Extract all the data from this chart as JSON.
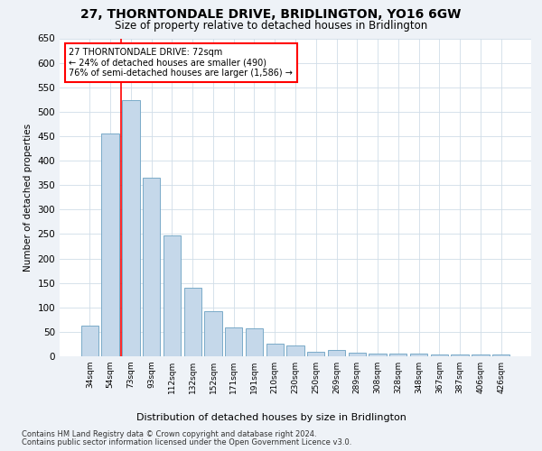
{
  "title": "27, THORNTONDALE DRIVE, BRIDLINGTON, YO16 6GW",
  "subtitle": "Size of property relative to detached houses in Bridlington",
  "xlabel": "Distribution of detached houses by size in Bridlington",
  "ylabel": "Number of detached properties",
  "bar_labels": [
    "34sqm",
    "54sqm",
    "73sqm",
    "93sqm",
    "112sqm",
    "132sqm",
    "152sqm",
    "171sqm",
    "191sqm",
    "210sqm",
    "230sqm",
    "250sqm",
    "269sqm",
    "289sqm",
    "308sqm",
    "328sqm",
    "348sqm",
    "367sqm",
    "387sqm",
    "406sqm",
    "426sqm"
  ],
  "bar_values": [
    62,
    455,
    523,
    365,
    247,
    140,
    93,
    59,
    57,
    25,
    23,
    10,
    12,
    7,
    6,
    5,
    5,
    4,
    4,
    4,
    4
  ],
  "bar_color": "#c5d8ea",
  "bar_edge_color": "#7aaac8",
  "property_line_x": 1.5,
  "annotation_title": "27 THORNTONDALE DRIVE: 72sqm",
  "annotation_line1": "← 24% of detached houses are smaller (490)",
  "annotation_line2": "76% of semi-detached houses are larger (1,586) →",
  "ylim": [
    0,
    650
  ],
  "yticks": [
    0,
    50,
    100,
    150,
    200,
    250,
    300,
    350,
    400,
    450,
    500,
    550,
    600,
    650
  ],
  "footer1": "Contains HM Land Registry data © Crown copyright and database right 2024.",
  "footer2": "Contains public sector information licensed under the Open Government Licence v3.0.",
  "bg_color": "#eef2f7",
  "plot_bg_color": "#ffffff",
  "grid_color": "#d0dde8"
}
